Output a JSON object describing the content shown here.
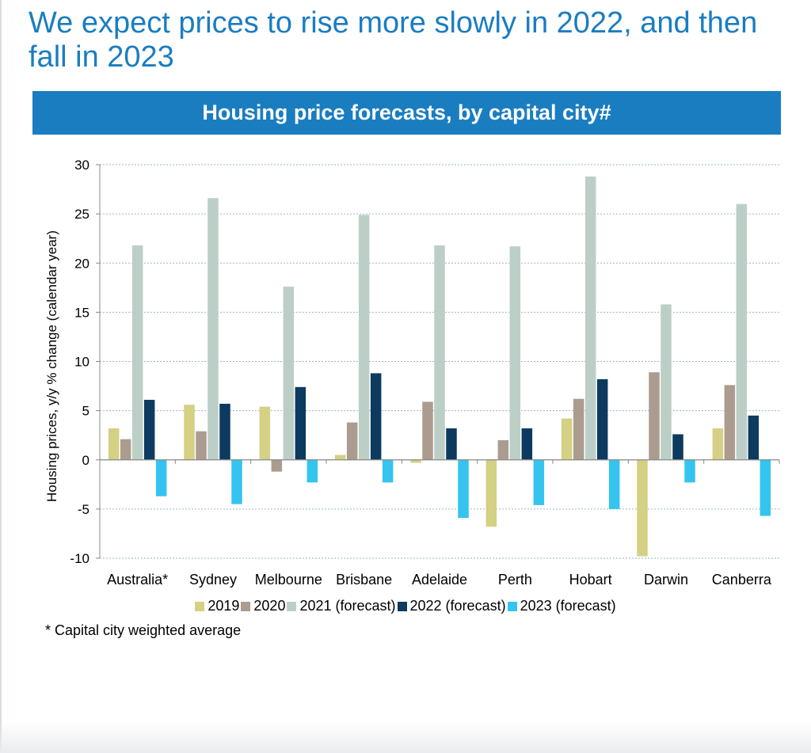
{
  "page": {
    "headline": "We expect prices to rise more slowly in 2022, and then fall in 2023",
    "banner": "Housing price forecasts, by capital city#",
    "footnote": "* Capital city weighted average"
  },
  "chart_data": {
    "type": "bar",
    "title": "Housing price forecasts, by capital city#",
    "xlabel": "",
    "ylabel": "Housing prices, y/y % change (calendar year)",
    "ylim": [
      -10,
      30
    ],
    "yticks": [
      30,
      25,
      20,
      15,
      10,
      5,
      0,
      -5,
      -10
    ],
    "grid": true,
    "legend_position": "bottom",
    "categories": [
      "Australia*",
      "Sydney",
      "Melbourne",
      "Brisbane",
      "Adelaide",
      "Perth",
      "Hobart",
      "Darwin",
      "Canberra"
    ],
    "series": [
      {
        "name": "2019",
        "color": "#d4d084",
        "values": [
          3.2,
          5.6,
          5.4,
          0.5,
          -0.3,
          -6.8,
          4.2,
          -9.8,
          3.2
        ]
      },
      {
        "name": "2020",
        "color": "#ab9c8f",
        "values": [
          2.1,
          2.9,
          -1.2,
          3.8,
          5.9,
          2.0,
          6.2,
          8.9,
          7.6
        ]
      },
      {
        "name": "2021 (forecast)",
        "color": "#bbcfc6",
        "values": [
          21.8,
          26.6,
          17.6,
          24.9,
          21.8,
          21.7,
          28.8,
          15.8,
          26.0
        ]
      },
      {
        "name": "2022 (forecast)",
        "color": "#0d3a5f",
        "values": [
          6.1,
          5.7,
          7.4,
          8.8,
          3.2,
          3.2,
          8.2,
          2.6,
          4.5
        ]
      },
      {
        "name": "2023 (forecast)",
        "color": "#34c4ef",
        "values": [
          -3.7,
          -4.5,
          -2.3,
          -2.3,
          -5.9,
          -4.6,
          -5.0,
          -2.3,
          -5.7
        ]
      }
    ]
  }
}
